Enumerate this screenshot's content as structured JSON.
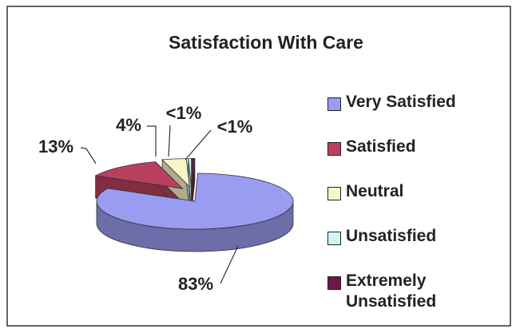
{
  "chart_data": {
    "type": "pie3d",
    "title": "Satisfaction With Care",
    "categories": [
      "Very Satisfied",
      "Satisfied",
      "Neutral",
      "Unsatisfied",
      "Extremely Unsatisfied"
    ],
    "values": [
      83,
      13,
      4,
      0.5,
      0.5
    ],
    "value_labels": [
      "83%",
      "13%",
      "4%",
      "<1%",
      "<1%"
    ],
    "colors": [
      "#9a9cf2",
      "#b8405e",
      "#f8f6c8",
      "#cdf6f8",
      "#6a1848"
    ],
    "legend": "right"
  }
}
